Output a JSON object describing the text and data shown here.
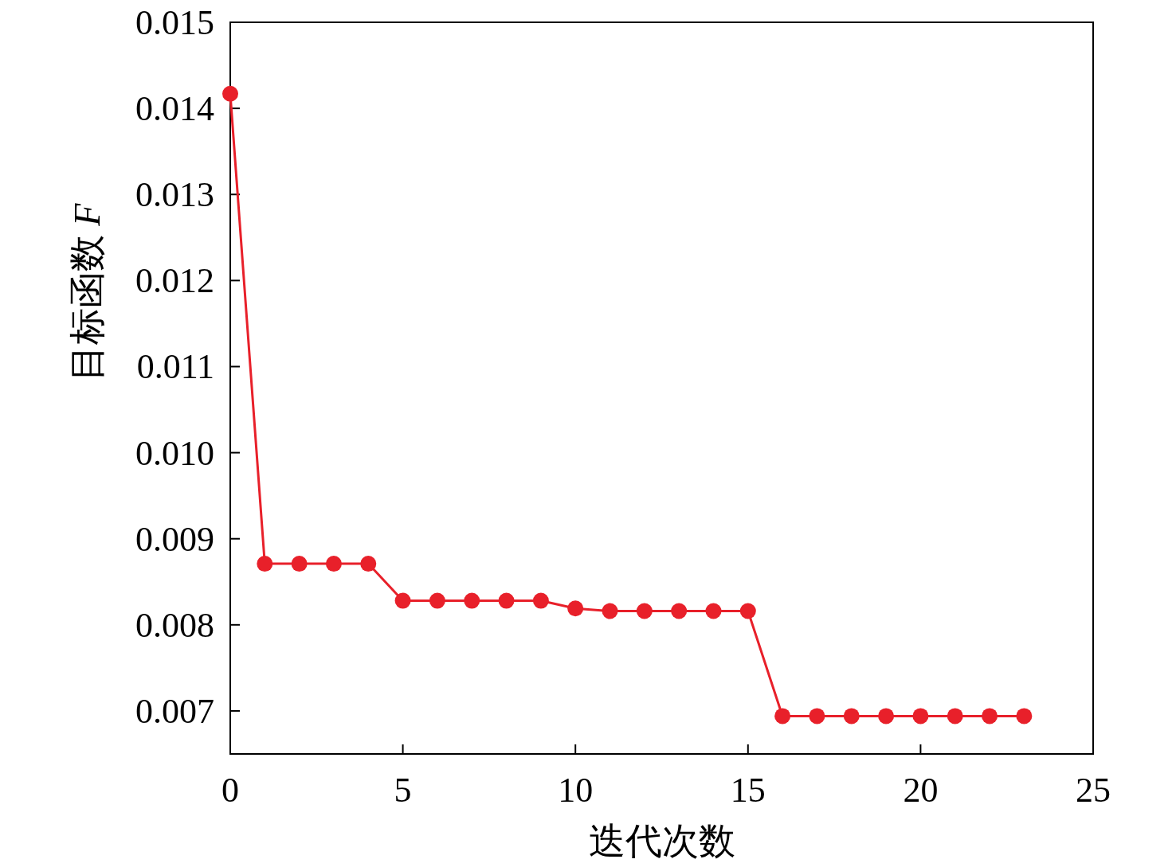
{
  "chart_data": {
    "type": "line",
    "xlabel": "迭代次数",
    "ylabel": "目标函数 *F*",
    "x": [
      0,
      1,
      2,
      3,
      4,
      5,
      6,
      7,
      8,
      9,
      10,
      11,
      12,
      13,
      14,
      15,
      16,
      17,
      18,
      19,
      20,
      21,
      22,
      23
    ],
    "values": [
      0.01417,
      0.00871,
      0.00871,
      0.00871,
      0.00871,
      0.00828,
      0.00828,
      0.00828,
      0.00828,
      0.00828,
      0.00819,
      0.00816,
      0.00816,
      0.00816,
      0.00816,
      0.00816,
      0.00694,
      0.00694,
      0.00694,
      0.00694,
      0.00694,
      0.00694,
      0.00694,
      0.00694
    ],
    "color": "#e8202a",
    "marker": "circle",
    "xlim": [
      0,
      25
    ],
    "xticks": [
      0,
      5,
      10,
      15,
      20,
      25
    ],
    "ylim": [
      0.0065,
      0.015
    ],
    "yticks": [
      0.007,
      0.008,
      0.009,
      {
        "value": 0.01,
        "label": "0.010"
      },
      0.011,
      0.012,
      0.013,
      0.014,
      0.015
    ]
  }
}
